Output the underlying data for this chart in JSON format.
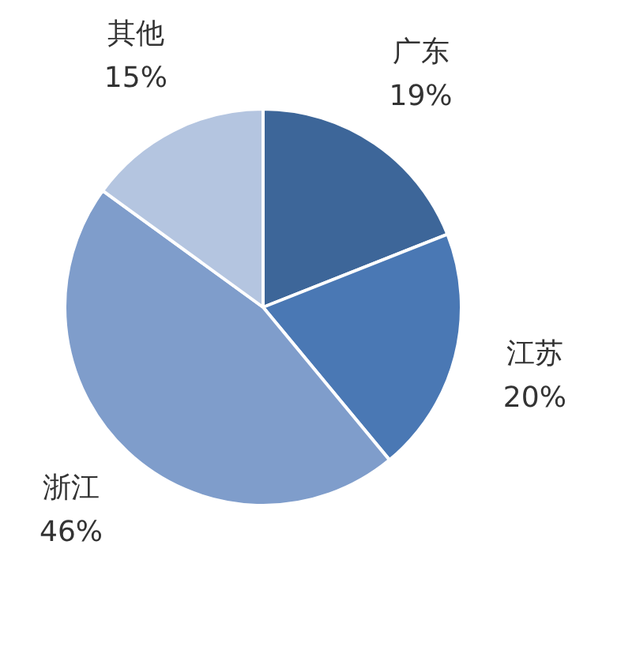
{
  "chart_data": {
    "type": "pie",
    "categories": [
      "广东",
      "江苏",
      "浙江",
      "其他"
    ],
    "values": [
      19,
      20,
      46,
      15
    ],
    "colors": [
      "#3d6699",
      "#4a78b4",
      "#7f9dcb",
      "#b4c5e0"
    ],
    "value_labels": [
      "19%",
      "20%",
      "46%",
      "15%"
    ],
    "legend": false
  }
}
